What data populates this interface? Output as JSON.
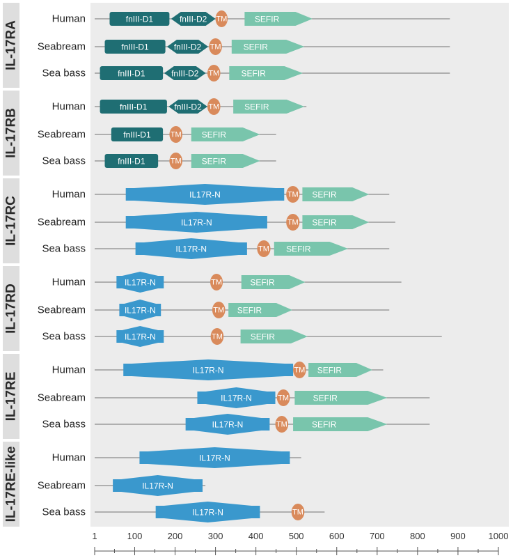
{
  "axis": {
    "min": 1,
    "max": 1000,
    "major_tick_labels": [
      "1",
      "100",
      "200",
      "300",
      "400",
      "500",
      "600",
      "700",
      "800",
      "900",
      "1000"
    ],
    "major_tick_values": [
      1,
      100,
      200,
      300,
      400,
      500,
      600,
      700,
      800,
      900,
      1000
    ]
  },
  "colors": {
    "fnIII": "#1f6e73",
    "il17rn": "#3a98cd",
    "tm": "#d98a5b",
    "sefir": "#79c5ac",
    "backbone": "#8a8a8a",
    "panel": "#ececec",
    "group_label_bg": "#dedede"
  },
  "groups": [
    {
      "label": "IL-17RA",
      "proteins": [
        {
          "species": "Human",
          "length": 880,
          "domains": [
            {
              "type": "fnIII",
              "label": "fnIII-D1",
              "start": 38,
              "end": 186
            },
            {
              "type": "fnIII-hex",
              "label": "fnIII-D2",
              "start": 190,
              "end": 300
            },
            {
              "type": "tm",
              "label": "TM",
              "start": 300,
              "end": 330
            },
            {
              "type": "sefir",
              "label": "SEFIR",
              "start": 372,
              "end": 540
            }
          ]
        },
        {
          "species": "Seabream",
          "length": 880,
          "domains": [
            {
              "type": "fnIII",
              "label": "fnIII-D1",
              "start": 26,
              "end": 176
            },
            {
              "type": "fnIII-hex",
              "label": "fnIII-D2",
              "start": 180,
              "end": 282
            },
            {
              "type": "tm",
              "label": "TM",
              "start": 284,
              "end": 316
            },
            {
              "type": "sefir",
              "label": "SEFIR",
              "start": 340,
              "end": 520
            }
          ]
        },
        {
          "species": "Sea bass",
          "length": 880,
          "domains": [
            {
              "type": "fnIII",
              "label": "fnIII-D1",
              "start": 14,
              "end": 170
            },
            {
              "type": "fnIII-hex",
              "label": "fnIII-D2",
              "start": 173,
              "end": 276
            },
            {
              "type": "tm",
              "label": "TM",
              "start": 280,
              "end": 312
            },
            {
              "type": "sefir",
              "label": "SEFIR",
              "start": 334,
              "end": 516
            }
          ]
        }
      ]
    },
    {
      "label": "IL-17RB",
      "proteins": [
        {
          "species": "Human",
          "length": 525,
          "domains": [
            {
              "type": "fnIII",
              "label": "fnIII-D1",
              "start": 14,
              "end": 180
            },
            {
              "type": "fnIII-hex",
              "label": "fnIII-D2",
              "start": 184,
              "end": 280
            },
            {
              "type": "tm",
              "label": "TM",
              "start": 280,
              "end": 312
            },
            {
              "type": "sefir",
              "label": "SEFIR",
              "start": 344,
              "end": 520
            }
          ]
        },
        {
          "species": "Seabream",
          "length": 450,
          "domains": [
            {
              "type": "fnIII",
              "label": "fnIII-D1",
              "start": 42,
              "end": 170
            },
            {
              "type": "tm",
              "label": "TM",
              "start": 186,
              "end": 218
            },
            {
              "type": "sefir",
              "label": "SEFIR",
              "start": 240,
              "end": 410
            }
          ]
        },
        {
          "species": "Sea bass",
          "length": 450,
          "domains": [
            {
              "type": "fnIII",
              "label": "fnIII-D1",
              "start": 26,
              "end": 158
            },
            {
              "type": "tm",
              "label": "TM",
              "start": 186,
              "end": 218
            },
            {
              "type": "sefir",
              "label": "SEFIR",
              "start": 240,
              "end": 410
            }
          ]
        }
      ]
    },
    {
      "label": "IL-17RC",
      "proteins": [
        {
          "species": "Human",
          "length": 730,
          "domains": [
            {
              "type": "il17rn",
              "label": "IL17R-N",
              "start": 78,
              "end": 470
            },
            {
              "type": "tm",
              "label": "TM",
              "start": 475,
              "end": 508
            },
            {
              "type": "sefir",
              "label": "SEFIR",
              "start": 515,
              "end": 680
            }
          ]
        },
        {
          "species": "Seabream",
          "length": 745,
          "domains": [
            {
              "type": "il17rn",
              "label": "IL17R-N",
              "start": 78,
              "end": 428
            },
            {
              "type": "tm",
              "label": "TM",
              "start": 475,
              "end": 508
            },
            {
              "type": "sefir",
              "label": "SEFIR",
              "start": 515,
              "end": 680
            }
          ]
        },
        {
          "species": "Sea bass",
          "length": 730,
          "domains": [
            {
              "type": "il17rn",
              "label": "IL17R-N",
              "start": 102,
              "end": 378
            },
            {
              "type": "tm",
              "label": "TM",
              "start": 403,
              "end": 436
            },
            {
              "type": "sefir",
              "label": "SEFIR",
              "start": 445,
              "end": 628
            }
          ]
        }
      ]
    },
    {
      "label": "IL-17RD",
      "proteins": [
        {
          "species": "Human",
          "length": 760,
          "domains": [
            {
              "type": "il17rn",
              "label": "IL17R-N",
              "start": 55,
              "end": 172
            },
            {
              "type": "tm",
              "label": "TM",
              "start": 287,
              "end": 318
            },
            {
              "type": "sefir",
              "label": "SEFIR",
              "start": 364,
              "end": 522
            }
          ]
        },
        {
          "species": "Seabream",
          "length": 730,
          "domains": [
            {
              "type": "il17rn",
              "label": "IL17R-N",
              "start": 62,
              "end": 165
            },
            {
              "type": "tm",
              "label": "TM",
              "start": 292,
              "end": 324
            },
            {
              "type": "sefir",
              "label": "SEFIR",
              "start": 332,
              "end": 490
            }
          ]
        },
        {
          "species": "Sea bass",
          "length": 860,
          "domains": [
            {
              "type": "il17rn",
              "label": "IL17R-N",
              "start": 55,
              "end": 172
            },
            {
              "type": "tm",
              "label": "TM",
              "start": 288,
              "end": 320
            },
            {
              "type": "sefir",
              "label": "SEFIR",
              "start": 362,
              "end": 528
            }
          ]
        }
      ]
    },
    {
      "label": "IL-17RE",
      "proteins": [
        {
          "species": "Human",
          "length": 715,
          "domains": [
            {
              "type": "il17rn",
              "label": "IL17R-N",
              "start": 72,
              "end": 492
            },
            {
              "type": "tm",
              "label": "TM",
              "start": 492,
              "end": 524
            },
            {
              "type": "sefir",
              "label": "SEFIR",
              "start": 530,
              "end": 688
            }
          ]
        },
        {
          "species": "Seabream",
          "length": 830,
          "domains": [
            {
              "type": "il17rn",
              "label": "IL17R-N",
              "start": 255,
              "end": 448
            },
            {
              "type": "tm",
              "label": "TM",
              "start": 452,
              "end": 484
            },
            {
              "type": "sefir",
              "label": "SEFIR",
              "start": 496,
              "end": 725
            }
          ]
        },
        {
          "species": "Sea bass",
          "length": 830,
          "domains": [
            {
              "type": "il17rn",
              "label": "IL17R-N",
              "start": 226,
              "end": 434
            },
            {
              "type": "tm",
              "label": "TM",
              "start": 448,
              "end": 480
            },
            {
              "type": "sefir",
              "label": "SEFIR",
              "start": 492,
              "end": 725
            }
          ]
        }
      ]
    },
    {
      "label": "IL-17RE-like",
      "proteins": [
        {
          "species": "Human",
          "length": 512,
          "domains": [
            {
              "type": "il17rn",
              "label": "IL17R-N",
              "start": 112,
              "end": 484
            }
          ]
        },
        {
          "species": "Seabream",
          "length": 275,
          "domains": [
            {
              "type": "il17rn",
              "label": "IL17R-N",
              "start": 46,
              "end": 268
            }
          ]
        },
        {
          "species": "Sea bass",
          "length": 570,
          "domains": [
            {
              "type": "il17rn",
              "label": "IL17R-N",
              "start": 152,
              "end": 410
            },
            {
              "type": "tm",
              "label": "TM",
              "start": 488,
              "end": 520
            }
          ]
        }
      ]
    }
  ]
}
